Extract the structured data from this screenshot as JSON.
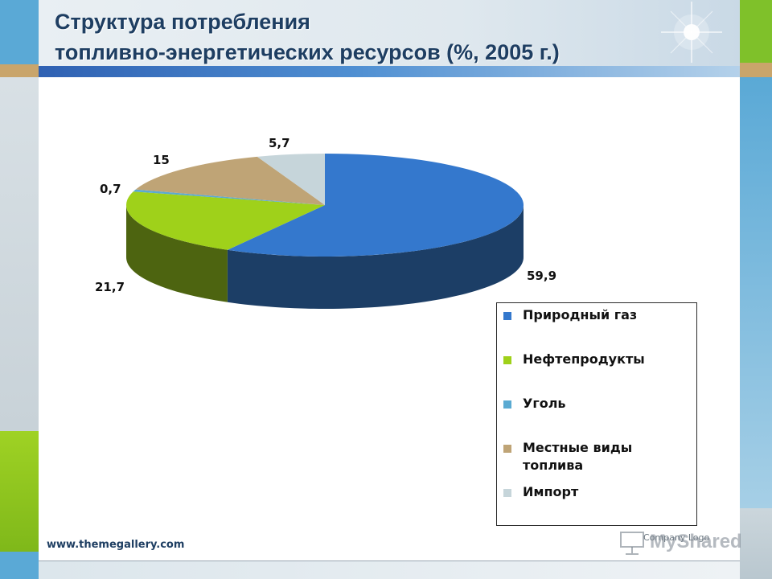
{
  "slide": {
    "title_line1": "Структура потребления",
    "title_line2": "топливно-энергетических ресурсов  (%, 2005 г.)",
    "website": "www.themegallery.com",
    "company_logo": "Company Logo",
    "watermark": "MyShared"
  },
  "colors": {
    "accent_band": "#2f61b3",
    "title_text": "#1e3e62"
  },
  "chart_data": {
    "type": "pie",
    "title": "Структура потребления топливно-энергетических ресурсов (%, 2005 г.)",
    "categories": [
      "Природный газ",
      "Нефтепродукты",
      "Уголь",
      "Местные виды топлива",
      "Импорт"
    ],
    "values": [
      59.9,
      21.7,
      0.7,
      15,
      5.7
    ],
    "data_labels": [
      "59,9",
      "21,7",
      "0,7",
      "15",
      "5,7"
    ],
    "colors": [
      "#3478cd",
      "#9fd11a",
      "#5aaad2",
      "#bfa476",
      "#c6d5da"
    ],
    "side_colors": [
      "#1c3e66",
      "#4d6410",
      "#2e6a88",
      "#7a6440",
      "#7f8d92"
    ],
    "three_d": true,
    "legend_position": "right-bottom"
  }
}
